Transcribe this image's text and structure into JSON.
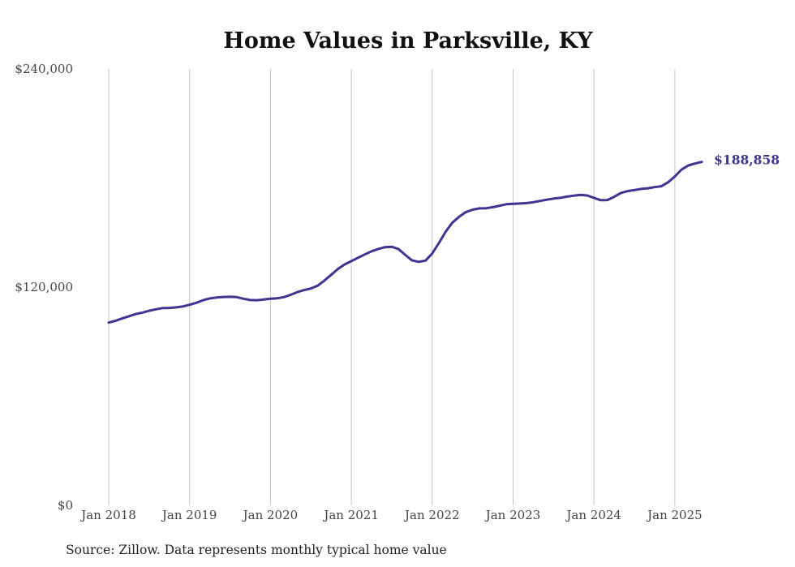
{
  "chart_data": {
    "type": "line",
    "title": "Home Values in Parksville, KY",
    "xlabel": "",
    "ylabel": "",
    "ylim": [
      0,
      240000
    ],
    "yticks": [
      0,
      120000,
      240000
    ],
    "ytick_labels": [
      "$0",
      "$120,000",
      "$240,000"
    ],
    "xlim": [
      "2018-01",
      "2025-08"
    ],
    "xticks": [
      "2018-01",
      "2019-01",
      "2020-01",
      "2021-01",
      "2022-01",
      "2023-01",
      "2024-01",
      "2025-01"
    ],
    "xtick_labels": [
      "Jan 2018",
      "Jan 2019",
      "Jan 2020",
      "Jan 2021",
      "Jan 2022",
      "Jan 2023",
      "Jan 2024",
      "Jan 2025"
    ],
    "grid": "vertical",
    "line_color": "#3d3591",
    "series": [
      {
        "points": [
          [
            "2018-01",
            100500
          ],
          [
            "2018-02",
            101500
          ],
          [
            "2018-03",
            102800
          ],
          [
            "2018-04",
            104000
          ],
          [
            "2018-05",
            105200
          ],
          [
            "2018-06",
            106000
          ],
          [
            "2018-07",
            107000
          ],
          [
            "2018-08",
            107800
          ],
          [
            "2018-09",
            108500
          ],
          [
            "2018-10",
            108600
          ],
          [
            "2018-11",
            108900
          ],
          [
            "2018-12",
            109400
          ],
          [
            "2019-01",
            110300
          ],
          [
            "2019-02",
            111400
          ],
          [
            "2019-03",
            112800
          ],
          [
            "2019-04",
            113800
          ],
          [
            "2019-05",
            114300
          ],
          [
            "2019-06",
            114600
          ],
          [
            "2019-07",
            114700
          ],
          [
            "2019-08",
            114500
          ],
          [
            "2019-09",
            113600
          ],
          [
            "2019-10",
            112900
          ],
          [
            "2019-11",
            112800
          ],
          [
            "2019-12",
            113200
          ],
          [
            "2020-01",
            113600
          ],
          [
            "2020-02",
            113900
          ],
          [
            "2020-03",
            114500
          ],
          [
            "2020-04",
            115800
          ],
          [
            "2020-05",
            117300
          ],
          [
            "2020-06",
            118400
          ],
          [
            "2020-07",
            119300
          ],
          [
            "2020-08",
            120800
          ],
          [
            "2020-09",
            123600
          ],
          [
            "2020-10",
            126800
          ],
          [
            "2020-11",
            130000
          ],
          [
            "2020-12",
            132500
          ],
          [
            "2021-01",
            134300
          ],
          [
            "2021-02",
            136200
          ],
          [
            "2021-03",
            138000
          ],
          [
            "2021-04",
            139700
          ],
          [
            "2021-05",
            141000
          ],
          [
            "2021-06",
            142000
          ],
          [
            "2021-07",
            142200
          ],
          [
            "2021-08",
            140900
          ],
          [
            "2021-09",
            137700
          ],
          [
            "2021-10",
            134700
          ],
          [
            "2021-11",
            133900
          ],
          [
            "2021-12",
            134600
          ],
          [
            "2022-01",
            138500
          ],
          [
            "2022-02",
            144300
          ],
          [
            "2022-03",
            150500
          ],
          [
            "2022-04",
            155500
          ],
          [
            "2022-05",
            158700
          ],
          [
            "2022-06",
            161300
          ],
          [
            "2022-07",
            162600
          ],
          [
            "2022-08",
            163300
          ],
          [
            "2022-09",
            163400
          ],
          [
            "2022-10",
            164000
          ],
          [
            "2022-11",
            164800
          ],
          [
            "2022-12",
            165600
          ],
          [
            "2023-01",
            165800
          ],
          [
            "2023-02",
            166000
          ],
          [
            "2023-03",
            166200
          ],
          [
            "2023-04",
            166700
          ],
          [
            "2023-05",
            167400
          ],
          [
            "2023-06",
            168100
          ],
          [
            "2023-07",
            168700
          ],
          [
            "2023-08",
            169100
          ],
          [
            "2023-09",
            169800
          ],
          [
            "2023-10",
            170300
          ],
          [
            "2023-11",
            170700
          ],
          [
            "2023-12",
            170400
          ],
          [
            "2024-01",
            169100
          ],
          [
            "2024-02",
            167800
          ],
          [
            "2024-03",
            167900
          ],
          [
            "2024-04",
            169700
          ],
          [
            "2024-05",
            171800
          ],
          [
            "2024-06",
            172800
          ],
          [
            "2024-07",
            173400
          ],
          [
            "2024-08",
            174000
          ],
          [
            "2024-09",
            174400
          ],
          [
            "2024-10",
            175000
          ],
          [
            "2024-11",
            175500
          ],
          [
            "2024-12",
            177700
          ],
          [
            "2025-01",
            180900
          ],
          [
            "2025-02",
            184700
          ],
          [
            "2025-03",
            186900
          ],
          [
            "2025-04",
            188000
          ],
          [
            "2025-05",
            188858
          ]
        ]
      }
    ],
    "end_label": "$188,858",
    "source_note": "Source: Zillow. Data represents monthly typical home value"
  }
}
